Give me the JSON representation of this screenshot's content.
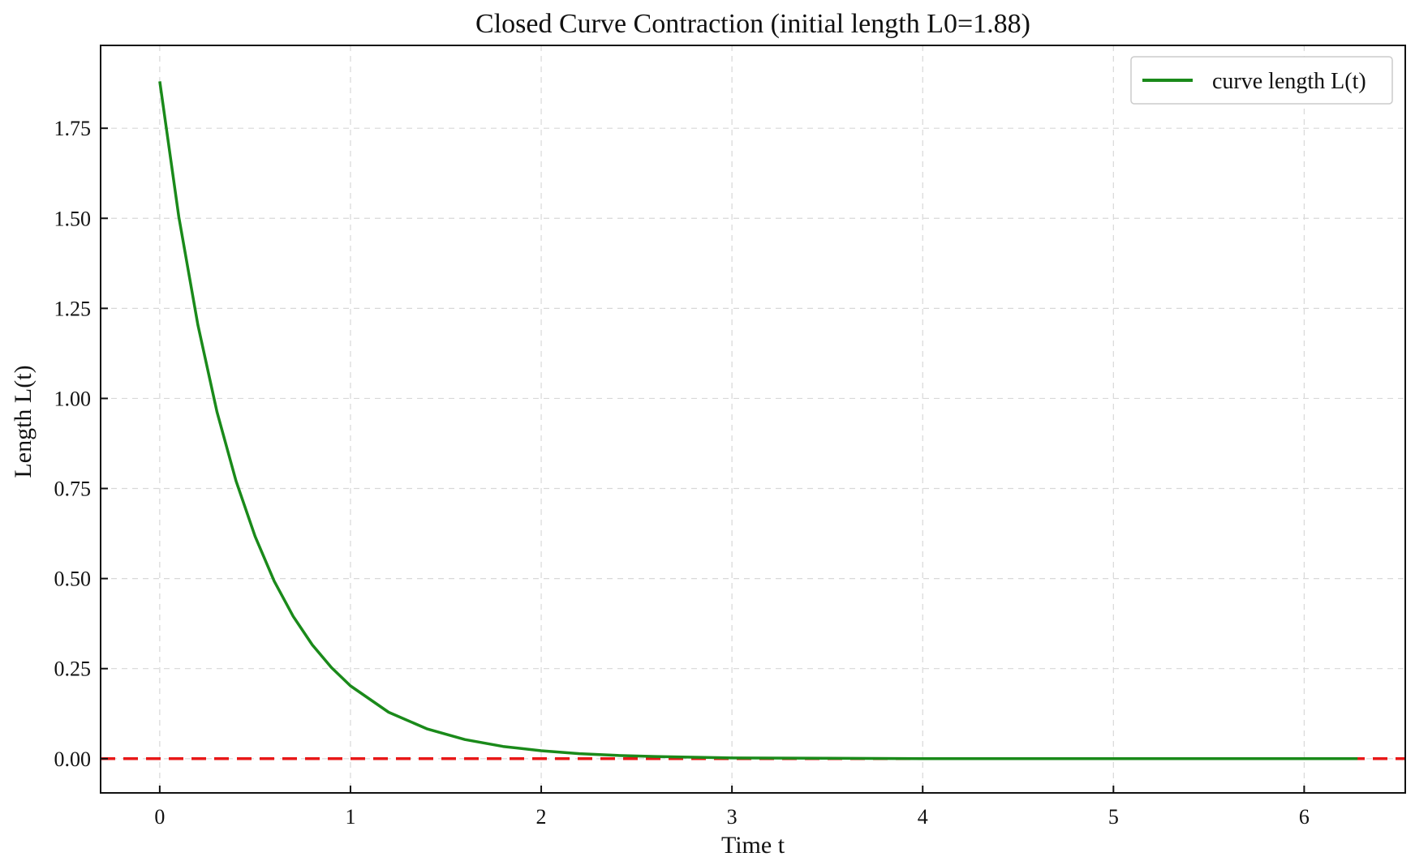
{
  "chart_data": {
    "type": "line",
    "title": "Closed Curve Contraction (initial length L0=1.88)",
    "xlabel": "Time t",
    "ylabel": "Length L(t)",
    "xlim": [
      -0.31,
      6.53
    ],
    "ylim": [
      -0.095,
      1.98
    ],
    "x_ticks": [
      0,
      1,
      2,
      3,
      4,
      5,
      6
    ],
    "x_tick_labels": [
      "0",
      "1",
      "2",
      "3",
      "4",
      "5",
      "6"
    ],
    "y_ticks": [
      0.0,
      0.25,
      0.5,
      0.75,
      1.0,
      1.25,
      1.5,
      1.75
    ],
    "y_tick_labels": [
      "0.00",
      "0.25",
      "0.50",
      "0.75",
      "1.00",
      "1.25",
      "1.50",
      "1.75"
    ],
    "grid": true,
    "legend_position": "top-right",
    "series": [
      {
        "name": "curve length L(t)",
        "color": "#1a8a1a",
        "style": "solid",
        "x": [
          0,
          0.1,
          0.2,
          0.3,
          0.4,
          0.5,
          0.6,
          0.7,
          0.8,
          0.9,
          1.0,
          1.2,
          1.4,
          1.6,
          1.8,
          2.0,
          2.2,
          2.4,
          2.6,
          2.8,
          3.0,
          3.5,
          4.0,
          4.5,
          5.0,
          5.5,
          6.0,
          6.28
        ],
        "y": [
          1.88,
          1.504,
          1.204,
          0.963,
          0.771,
          0.617,
          0.493,
          0.395,
          0.316,
          0.253,
          0.202,
          0.129,
          0.083,
          0.053,
          0.034,
          0.022,
          0.014,
          0.009,
          0.006,
          0.004,
          0.002,
          0.001,
          0.0,
          0.0,
          0.0,
          0.0,
          0.0,
          0.0
        ]
      }
    ],
    "reference_line": {
      "y": 0.0,
      "color": "#e81818",
      "style": "dashed"
    }
  }
}
